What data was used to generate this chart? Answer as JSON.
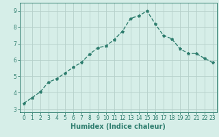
{
  "x": [
    0,
    1,
    2,
    3,
    4,
    5,
    6,
    7,
    8,
    9,
    10,
    11,
    12,
    13,
    14,
    15,
    16,
    17,
    18,
    19,
    20,
    21,
    22,
    23
  ],
  "y": [
    3.35,
    3.7,
    4.05,
    4.65,
    4.85,
    5.2,
    5.55,
    5.85,
    6.35,
    6.75,
    6.85,
    7.25,
    7.75,
    8.55,
    8.7,
    9.0,
    8.2,
    7.5,
    7.3,
    6.7,
    6.4,
    6.4,
    6.1,
    5.85
  ],
  "line_color": "#2e7d6e",
  "marker": "*",
  "marker_size": 3,
  "linewidth": 1.0,
  "linestyle": "--",
  "xlabel": "Humidex (Indice chaleur)",
  "xlabel_fontsize": 7,
  "xlim": [
    -0.5,
    23.5
  ],
  "ylim": [
    2.8,
    9.5
  ],
  "yticks": [
    3,
    4,
    5,
    6,
    7,
    8,
    9
  ],
  "xticks": [
    0,
    1,
    2,
    3,
    4,
    5,
    6,
    7,
    8,
    9,
    10,
    11,
    12,
    13,
    14,
    15,
    16,
    17,
    18,
    19,
    20,
    21,
    22,
    23
  ],
  "background_color": "#d6eee8",
  "grid_color": "#b5d0ca",
  "tick_fontsize": 5.5,
  "tick_color": "#2e7d6e",
  "border_color": "#2e7d6e"
}
